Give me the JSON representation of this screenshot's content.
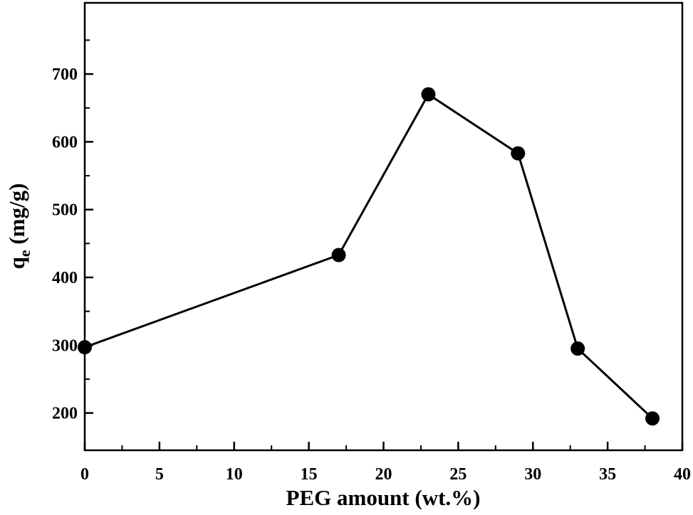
{
  "chart_data": {
    "type": "line",
    "xlabel": "PEG amount (wt.%)",
    "ylabel": {
      "main": "q",
      "subscript": "e",
      "unit": " (mg/g)"
    },
    "xlim": [
      0,
      40
    ],
    "ylim": [
      145,
      805
    ],
    "xticks": [
      0,
      5,
      10,
      15,
      20,
      25,
      30,
      35,
      40
    ],
    "xticks_minor": [
      2.5,
      7.5,
      12.5,
      17.5,
      22.5,
      27.5,
      32.5,
      37.5
    ],
    "yticks": [
      200,
      300,
      400,
      500,
      600,
      700
    ],
    "yticks_minor": [
      250,
      350,
      450,
      550,
      650,
      750
    ],
    "series": [
      {
        "x": [
          0,
          17,
          23,
          29,
          33,
          38
        ],
        "y": [
          297,
          433,
          670,
          583,
          295,
          192
        ],
        "color": "#000000",
        "marker": "circle"
      }
    ],
    "grid": false
  }
}
